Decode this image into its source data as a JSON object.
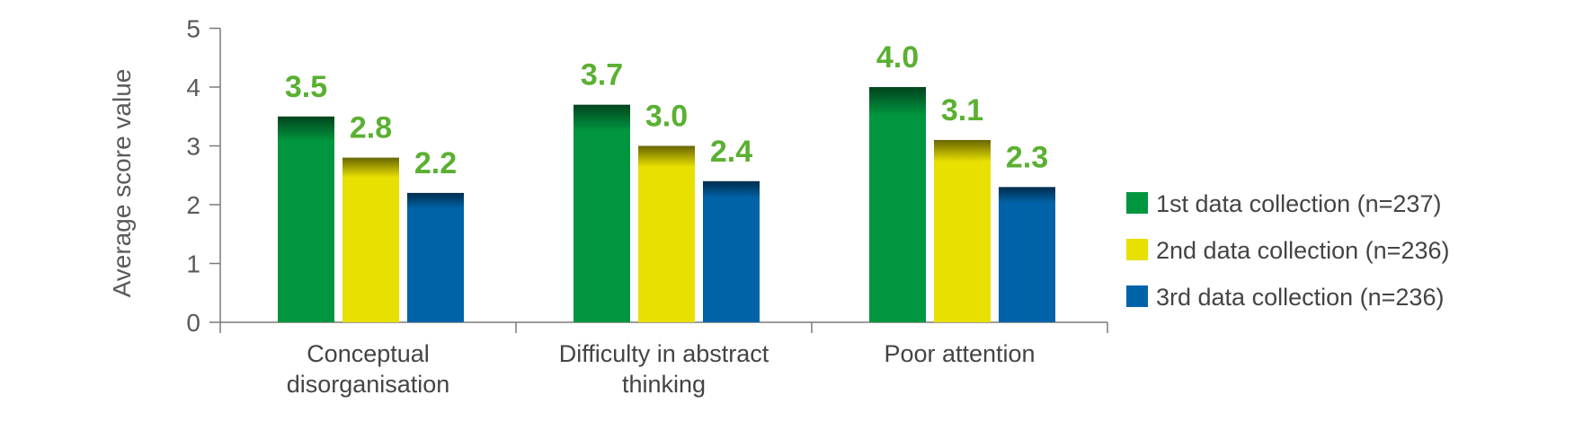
{
  "chart_data": {
    "type": "bar",
    "title": "",
    "xlabel": "",
    "ylabel": "Average score value",
    "ylim": [
      0,
      5
    ],
    "yticks": [
      "0",
      "1",
      "2",
      "3",
      "4",
      "5"
    ],
    "categories": [
      [
        "Conceptual",
        "disorganisation"
      ],
      [
        "Difficulty in abstract",
        "thinking"
      ],
      [
        "Poor attention"
      ]
    ],
    "series": [
      {
        "name": "1st data collection (n=237)",
        "values": [
          3.5,
          3.7,
          4.0
        ],
        "labels": [
          "3.5",
          "3.7",
          "4.0"
        ],
        "color": "#00963f"
      },
      {
        "name": "2nd data collection (n=236)",
        "values": [
          2.8,
          3.0,
          3.1
        ],
        "labels": [
          "2.8",
          "3.0",
          "3.1"
        ],
        "color": "#e8e000"
      },
      {
        "name": "3rd data collection (n=236)",
        "values": [
          2.2,
          2.4,
          2.3
        ],
        "labels": [
          "2.2",
          "2.4",
          "2.3"
        ],
        "color": "#0063a8"
      }
    ],
    "data_label_color": "#5ab031",
    "grid": false,
    "legend_position": "right"
  }
}
